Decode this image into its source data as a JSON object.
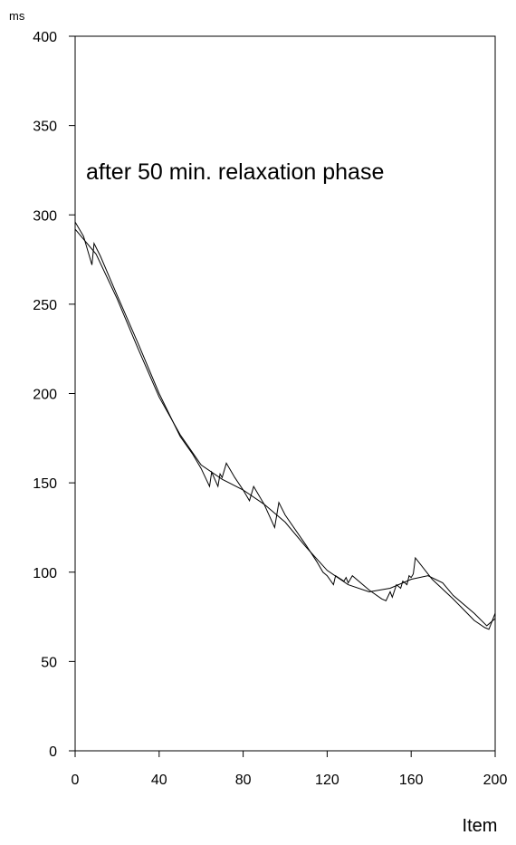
{
  "chart_data": {
    "type": "line",
    "y_unit_label": "ms",
    "xlabel": "Item",
    "annotation": "after 50 min. relaxation phase",
    "xlim": [
      0,
      200
    ],
    "xticks": [
      0,
      40,
      80,
      120,
      160,
      200
    ],
    "ylim": [
      0,
      400
    ],
    "yticks": [
      0,
      50,
      100,
      150,
      200,
      250,
      300,
      350,
      400
    ],
    "series": [
      {
        "color": "#000000",
        "x": [
          0,
          4,
          8,
          9,
          12,
          20,
          30,
          40,
          50,
          56,
          60,
          64,
          65,
          68,
          69,
          70,
          72,
          76,
          80,
          83,
          85,
          90,
          95,
          96,
          97,
          100,
          110,
          115,
          118,
          120,
          123,
          124,
          128,
          129,
          130,
          132,
          140,
          146,
          148,
          150,
          151,
          153,
          155,
          156,
          158,
          159,
          160,
          161,
          162,
          170,
          180,
          190,
          195,
          197,
          199,
          200
        ],
        "values": [
          296,
          288,
          272,
          284,
          277,
          255,
          228,
          200,
          176,
          166,
          158,
          148,
          156,
          148,
          155,
          153,
          161,
          153,
          146,
          140,
          148,
          138,
          125,
          132,
          139,
          132,
          115,
          106,
          100,
          98,
          93,
          98,
          95,
          97,
          94,
          98,
          90,
          85,
          84,
          89,
          86,
          93,
          91,
          95,
          93,
          98,
          97,
          99,
          108,
          96,
          85,
          73,
          69,
          68,
          74,
          77
        ]
      },
      {
        "color": "#000000",
        "x": [
          0,
          10,
          20,
          30,
          40,
          50,
          60,
          70,
          80,
          90,
          100,
          110,
          120,
          130,
          140,
          150,
          160,
          168,
          175,
          180,
          190,
          196,
          200
        ],
        "values": [
          292,
          278,
          253,
          225,
          198,
          177,
          160,
          152,
          146,
          138,
          128,
          114,
          101,
          93,
          89,
          91,
          96,
          98,
          94,
          87,
          77,
          70,
          74
        ]
      }
    ]
  }
}
